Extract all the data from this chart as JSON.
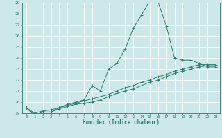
{
  "xlabel": "Humidex (Indice chaleur)",
  "background_color": "#cce8e8",
  "grid_color": "#ffffff",
  "line_color": "#2d7d6e",
  "xlim": [
    -0.5,
    23.5
  ],
  "ylim": [
    19,
    29
  ],
  "xticks": [
    0,
    1,
    2,
    3,
    4,
    5,
    6,
    7,
    8,
    9,
    10,
    11,
    12,
    13,
    14,
    15,
    16,
    17,
    18,
    19,
    20,
    21,
    22,
    23
  ],
  "yticks": [
    19,
    20,
    21,
    22,
    23,
    24,
    25,
    26,
    27,
    28,
    29
  ],
  "series": [
    [
      19.5,
      18.8,
      19.1,
      19.1,
      19.5,
      19.8,
      20.0,
      20.2,
      21.5,
      21.0,
      23.0,
      23.5,
      24.8,
      26.7,
      27.9,
      29.2,
      29.1,
      26.9,
      24.0,
      23.8,
      23.8,
      23.5,
      23.2,
      23.2
    ],
    [
      19.5,
      18.8,
      19.1,
      19.1,
      19.4,
      19.6,
      19.8,
      19.9,
      20.0,
      20.2,
      20.5,
      20.8,
      21.0,
      21.2,
      21.5,
      21.8,
      22.0,
      22.3,
      22.6,
      22.8,
      23.0,
      23.2,
      23.3,
      23.3
    ],
    [
      19.5,
      19.0,
      19.2,
      19.3,
      19.5,
      19.7,
      19.9,
      20.1,
      20.3,
      20.5,
      20.7,
      21.0,
      21.3,
      21.5,
      21.8,
      22.0,
      22.3,
      22.5,
      22.8,
      23.0,
      23.2,
      23.4,
      23.4,
      23.4
    ]
  ],
  "figsize": [
    3.2,
    2.0
  ],
  "dpi": 100
}
